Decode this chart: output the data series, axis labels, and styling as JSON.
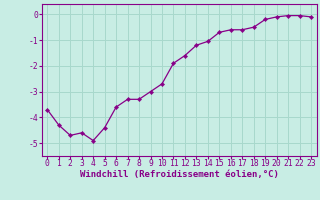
{
  "x": [
    0,
    1,
    2,
    3,
    4,
    5,
    6,
    7,
    8,
    9,
    10,
    11,
    12,
    13,
    14,
    15,
    16,
    17,
    18,
    19,
    20,
    21,
    22,
    23
  ],
  "y": [
    -3.7,
    -4.3,
    -4.7,
    -4.6,
    -4.9,
    -4.4,
    -3.6,
    -3.3,
    -3.3,
    -3.0,
    -2.7,
    -1.9,
    -1.6,
    -1.2,
    -1.05,
    -0.7,
    -0.6,
    -0.6,
    -0.5,
    -0.2,
    -0.1,
    -0.05,
    -0.05,
    -0.1
  ],
  "line_color": "#880088",
  "marker": "D",
  "marker_size": 2.2,
  "bg_color": "#c8ede4",
  "grid_color": "#a8d8cc",
  "xlabel": "Windchill (Refroidissement éolien,°C)",
  "ylabel": "",
  "ylim": [
    -5.5,
    0.4
  ],
  "xlim": [
    -0.5,
    23.5
  ],
  "yticks": [
    0,
    -1,
    -2,
    -3,
    -4,
    -5
  ],
  "xticks": [
    0,
    1,
    2,
    3,
    4,
    5,
    6,
    7,
    8,
    9,
    10,
    11,
    12,
    13,
    14,
    15,
    16,
    17,
    18,
    19,
    20,
    21,
    22,
    23
  ],
  "tick_color": "#880088",
  "label_fontsize": 6.5,
  "tick_fontsize": 5.8,
  "spine_color": "#880088",
  "linewidth": 0.9
}
